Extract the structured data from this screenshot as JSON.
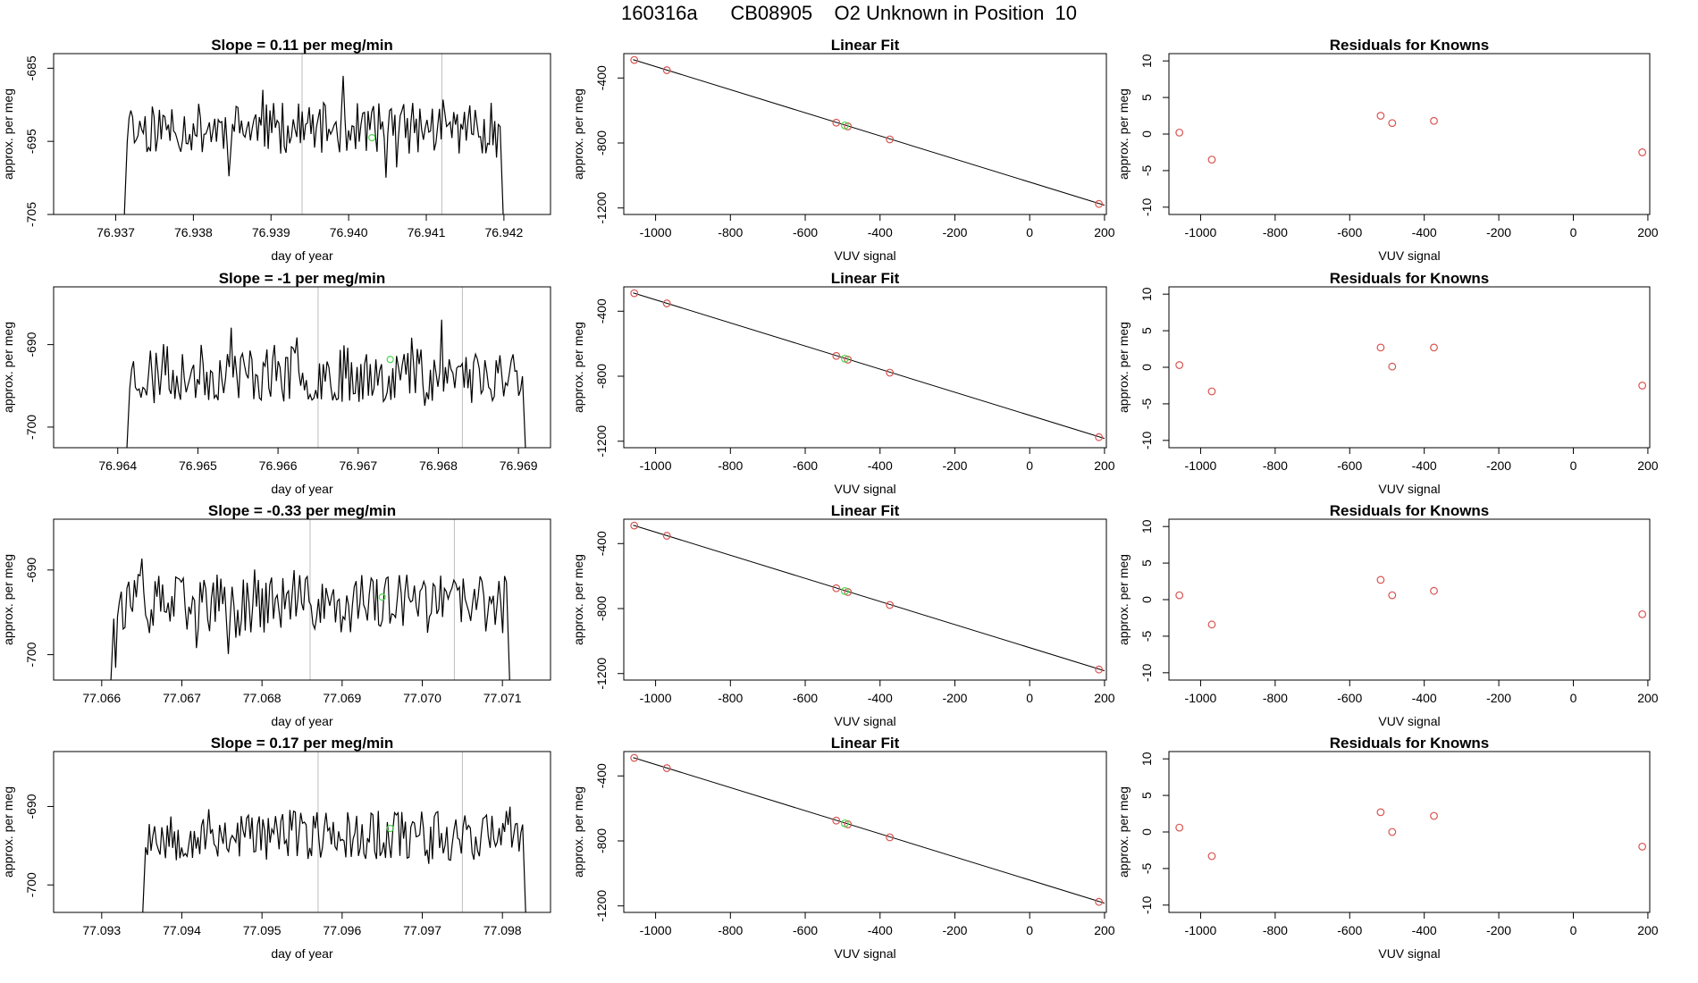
{
  "page": {
    "main_title": "160316a      CB08905    O2 Unknown in Position  10"
  },
  "colors": {
    "trace": "#000000",
    "guide_lines": "#bdbdbd",
    "unknown_marker": "#4cd64c",
    "known_marker": "#d9534f"
  },
  "chart_data": [
    {
      "type": "line",
      "row": 1,
      "panel": "time-series",
      "title": "Slope =  0.11  per meg/min",
      "xlabel": "day of year",
      "ylabel": "approx. per meg",
      "xlim": [
        76.9362,
        76.9426
      ],
      "ylim": [
        -705,
        -683
      ],
      "xticks": [
        76.937,
        76.938,
        76.939,
        76.94,
        76.941,
        76.942
      ],
      "xtick_labels": [
        "76.937",
        "76.938",
        "76.939",
        "76.940",
        "76.941",
        "76.942"
      ],
      "yticks": [
        -705,
        -695,
        -685
      ],
      "ytick_labels": [
        "-705",
        "-695",
        "-685"
      ],
      "vlines": [
        76.9394,
        76.9412
      ],
      "trace_span": [
        76.9371,
        76.942
      ],
      "trace_mean": -693.2,
      "trace_amplitude": 3.5,
      "seed": 11,
      "unknown_point": {
        "x": 76.9403,
        "y": -694.5
      }
    },
    {
      "type": "scatter",
      "row": 1,
      "panel": "linear-fit",
      "title": "Linear Fit",
      "xlabel": "VUV signal",
      "ylabel": "approx. per meg",
      "xlim": [
        -1085,
        205
      ],
      "ylim": [
        -1240,
        -250
      ],
      "xticks": [
        -1000,
        -800,
        -600,
        -400,
        -200,
        0,
        200
      ],
      "xtick_labels": [
        "-1000",
        "-800",
        "-600",
        "-400",
        "-200",
        "0",
        "200"
      ],
      "yticks": [
        -1200,
        -800,
        -400
      ],
      "ytick_labels": [
        "-1200",
        "-800",
        "-400"
      ],
      "fit_line": {
        "x": [
          -1060,
          200
        ],
        "y": [
          -287,
          -1183
        ]
      },
      "knowns": {
        "x": [
          -1057,
          -970,
          -517,
          -486,
          -374,
          185
        ],
        "y": [
          -289,
          -352,
          -675,
          -698,
          -778,
          -1175
        ]
      },
      "unknown": {
        "x": -494,
        "y": -692
      }
    },
    {
      "type": "scatter",
      "row": 1,
      "panel": "residuals",
      "title": "Residuals for Knowns",
      "xlabel": "VUV signal",
      "ylabel": "approx. per meg",
      "xlim": [
        -1085,
        205
      ],
      "ylim": [
        -11,
        11
      ],
      "xticks": [
        -1000,
        -800,
        -600,
        -400,
        -200,
        0,
        200
      ],
      "xtick_labels": [
        "-1000",
        "-800",
        "-600",
        "-400",
        "-200",
        "0",
        "200"
      ],
      "yticks": [
        -10,
        -5,
        0,
        5,
        10
      ],
      "ytick_labels": [
        "-10",
        "-5",
        "0",
        "5",
        "10"
      ],
      "residuals": {
        "x": [
          -1057,
          -970,
          -517,
          -486,
          -374,
          185
        ],
        "y": [
          0.2,
          -3.5,
          2.5,
          1.5,
          1.8,
          -2.5
        ]
      }
    },
    {
      "type": "line",
      "row": 2,
      "panel": "time-series",
      "title": "Slope =  -1  per meg/min",
      "xlabel": "day of year",
      "ylabel": "approx. per meg",
      "xlim": [
        76.9632,
        76.9694
      ],
      "ylim": [
        -702.5,
        -683
      ],
      "xticks": [
        76.964,
        76.965,
        76.966,
        76.967,
        76.968,
        76.969
      ],
      "xtick_labels": [
        "76.964",
        "76.965",
        "76.966",
        "76.967",
        "76.968",
        "76.969"
      ],
      "yticks": [
        -700,
        -690
      ],
      "ytick_labels": [
        "-700",
        "-690"
      ],
      "vlines": [
        76.9665,
        76.9683
      ],
      "trace_span": [
        76.9641,
        76.9691
      ],
      "trace_mean": -693.5,
      "trace_amplitude": 3.5,
      "seed": 23,
      "unknown_point": {
        "x": 76.9674,
        "y": -691.8
      }
    },
    {
      "type": "scatter",
      "row": 2,
      "panel": "linear-fit",
      "title": "Linear Fit",
      "xlabel": "VUV signal",
      "ylabel": "approx. per meg",
      "xlim": [
        -1085,
        205
      ],
      "ylim": [
        -1240,
        -250
      ],
      "xticks": [
        -1000,
        -800,
        -600,
        -400,
        -200,
        0,
        200
      ],
      "xtick_labels": [
        "-1000",
        "-800",
        "-600",
        "-400",
        "-200",
        "0",
        "200"
      ],
      "yticks": [
        -1200,
        -800,
        -400
      ],
      "ytick_labels": [
        "-1200",
        "-800",
        "-400"
      ],
      "fit_line": {
        "x": [
          -1060,
          200
        ],
        "y": [
          -287,
          -1183
        ]
      },
      "knowns": {
        "x": [
          -1057,
          -970,
          -517,
          -486,
          -374,
          185
        ],
        "y": [
          -289,
          -352,
          -675,
          -698,
          -778,
          -1175
        ]
      },
      "unknown": {
        "x": -494,
        "y": -692
      }
    },
    {
      "type": "scatter",
      "row": 2,
      "panel": "residuals",
      "title": "Residuals for Knowns",
      "xlabel": "VUV signal",
      "ylabel": "approx. per meg",
      "xlim": [
        -1085,
        205
      ],
      "ylim": [
        -11,
        11
      ],
      "xticks": [
        -1000,
        -800,
        -600,
        -400,
        -200,
        0,
        200
      ],
      "xtick_labels": [
        "-1000",
        "-800",
        "-600",
        "-400",
        "-200",
        "0",
        "200"
      ],
      "yticks": [
        -10,
        -5,
        0,
        5,
        10
      ],
      "ytick_labels": [
        "-10",
        "-5",
        "0",
        "5",
        "10"
      ],
      "residuals": {
        "x": [
          -1057,
          -970,
          -517,
          -486,
          -374,
          185
        ],
        "y": [
          0.3,
          -3.3,
          2.7,
          0.1,
          2.7,
          -2.5
        ]
      }
    },
    {
      "type": "line",
      "row": 3,
      "panel": "time-series",
      "title": "Slope =  -0.33  per meg/min",
      "xlabel": "day of year",
      "ylabel": "approx. per meg",
      "xlim": [
        77.0654,
        77.0716
      ],
      "ylim": [
        -703,
        -684
      ],
      "xticks": [
        77.066,
        77.067,
        77.068,
        77.069,
        77.07,
        77.071
      ],
      "xtick_labels": [
        "77.066",
        "77.067",
        "77.068",
        "77.069",
        "77.070",
        "77.071"
      ],
      "yticks": [
        -700,
        -690
      ],
      "ytick_labels": [
        "-700",
        "-690"
      ],
      "vlines": [
        77.0686,
        77.0704
      ],
      "trace_span": [
        77.0661,
        77.0711
      ],
      "trace_mean": -694.0,
      "trace_amplitude": 3.5,
      "seed": 37,
      "unknown_point": {
        "x": 77.0695,
        "y": -693.2
      }
    },
    {
      "type": "scatter",
      "row": 3,
      "panel": "linear-fit",
      "title": "Linear Fit",
      "xlabel": "VUV signal",
      "ylabel": "approx. per meg",
      "xlim": [
        -1085,
        205
      ],
      "ylim": [
        -1240,
        -250
      ],
      "xticks": [
        -1000,
        -800,
        -600,
        -400,
        -200,
        0,
        200
      ],
      "xtick_labels": [
        "-1000",
        "-800",
        "-600",
        "-400",
        "-200",
        "0",
        "200"
      ],
      "yticks": [
        -1200,
        -800,
        -400
      ],
      "ytick_labels": [
        "-1200",
        "-800",
        "-400"
      ],
      "fit_line": {
        "x": [
          -1060,
          200
        ],
        "y": [
          -287,
          -1183
        ]
      },
      "knowns": {
        "x": [
          -1057,
          -970,
          -517,
          -486,
          -374,
          185
        ],
        "y": [
          -289,
          -352,
          -675,
          -698,
          -778,
          -1175
        ]
      },
      "unknown": {
        "x": -494,
        "y": -692
      }
    },
    {
      "type": "scatter",
      "row": 3,
      "panel": "residuals",
      "title": "Residuals for Knowns",
      "xlabel": "VUV signal",
      "ylabel": "approx. per meg",
      "xlim": [
        -1085,
        205
      ],
      "ylim": [
        -11,
        11
      ],
      "xticks": [
        -1000,
        -800,
        -600,
        -400,
        -200,
        0,
        200
      ],
      "xtick_labels": [
        "-1000",
        "-800",
        "-600",
        "-400",
        "-200",
        "0",
        "200"
      ],
      "yticks": [
        -10,
        -5,
        0,
        5,
        10
      ],
      "ytick_labels": [
        "-10",
        "-5",
        "0",
        "5",
        "10"
      ],
      "residuals": {
        "x": [
          -1057,
          -970,
          -517,
          -486,
          -374,
          185
        ],
        "y": [
          0.6,
          -3.4,
          2.7,
          0.6,
          1.2,
          -2.0
        ]
      }
    },
    {
      "type": "line",
      "row": 4,
      "panel": "time-series",
      "title": "Slope =  0.17  per meg/min",
      "xlabel": "day of year",
      "ylabel": "approx. per meg",
      "xlim": [
        77.0924,
        77.0986
      ],
      "ylim": [
        -703.5,
        -683
      ],
      "xticks": [
        77.093,
        77.094,
        77.095,
        77.096,
        77.097,
        77.098
      ],
      "xtick_labels": [
        "77.093",
        "77.094",
        "77.095",
        "77.096",
        "77.097",
        "77.098"
      ],
      "yticks": [
        -700,
        -690
      ],
      "ytick_labels": [
        "-700",
        "-690"
      ],
      "vlines": [
        77.0957,
        77.0975
      ],
      "trace_span": [
        77.0935,
        77.0983
      ],
      "trace_mean": -693.6,
      "trace_amplitude": 3.3,
      "seed": 53,
      "unknown_point": {
        "x": 77.0966,
        "y": -692.8
      }
    },
    {
      "type": "scatter",
      "row": 4,
      "panel": "linear-fit",
      "title": "Linear Fit",
      "xlabel": "VUV signal",
      "ylabel": "approx. per meg",
      "xlim": [
        -1085,
        205
      ],
      "ylim": [
        -1240,
        -250
      ],
      "xticks": [
        -1000,
        -800,
        -600,
        -400,
        -200,
        0,
        200
      ],
      "xtick_labels": [
        "-1000",
        "-800",
        "-600",
        "-400",
        "-200",
        "0",
        "200"
      ],
      "yticks": [
        -1200,
        -800,
        -400
      ],
      "ytick_labels": [
        "-1200",
        "-800",
        "-400"
      ],
      "fit_line": {
        "x": [
          -1060,
          200
        ],
        "y": [
          -287,
          -1183
        ]
      },
      "knowns": {
        "x": [
          -1057,
          -970,
          -517,
          -486,
          -374,
          185
        ],
        "y": [
          -289,
          -352,
          -675,
          -698,
          -778,
          -1175
        ]
      },
      "unknown": {
        "x": -494,
        "y": -692
      }
    },
    {
      "type": "scatter",
      "row": 4,
      "panel": "residuals",
      "title": "Residuals for Knowns",
      "xlabel": "VUV signal",
      "ylabel": "approx. per meg",
      "xlim": [
        -1085,
        205
      ],
      "ylim": [
        -11,
        11
      ],
      "xticks": [
        -1000,
        -800,
        -600,
        -400,
        -200,
        0,
        200
      ],
      "xtick_labels": [
        "-1000",
        "-800",
        "-600",
        "-400",
        "-200",
        "0",
        "200"
      ],
      "yticks": [
        -10,
        -5,
        0,
        5,
        10
      ],
      "ytick_labels": [
        "-10",
        "-5",
        "0",
        "5",
        "10"
      ],
      "residuals": {
        "x": [
          -1057,
          -970,
          -517,
          -486,
          -374,
          185
        ],
        "y": [
          0.6,
          -3.3,
          2.7,
          0.0,
          2.2,
          -2.0
        ]
      }
    }
  ]
}
